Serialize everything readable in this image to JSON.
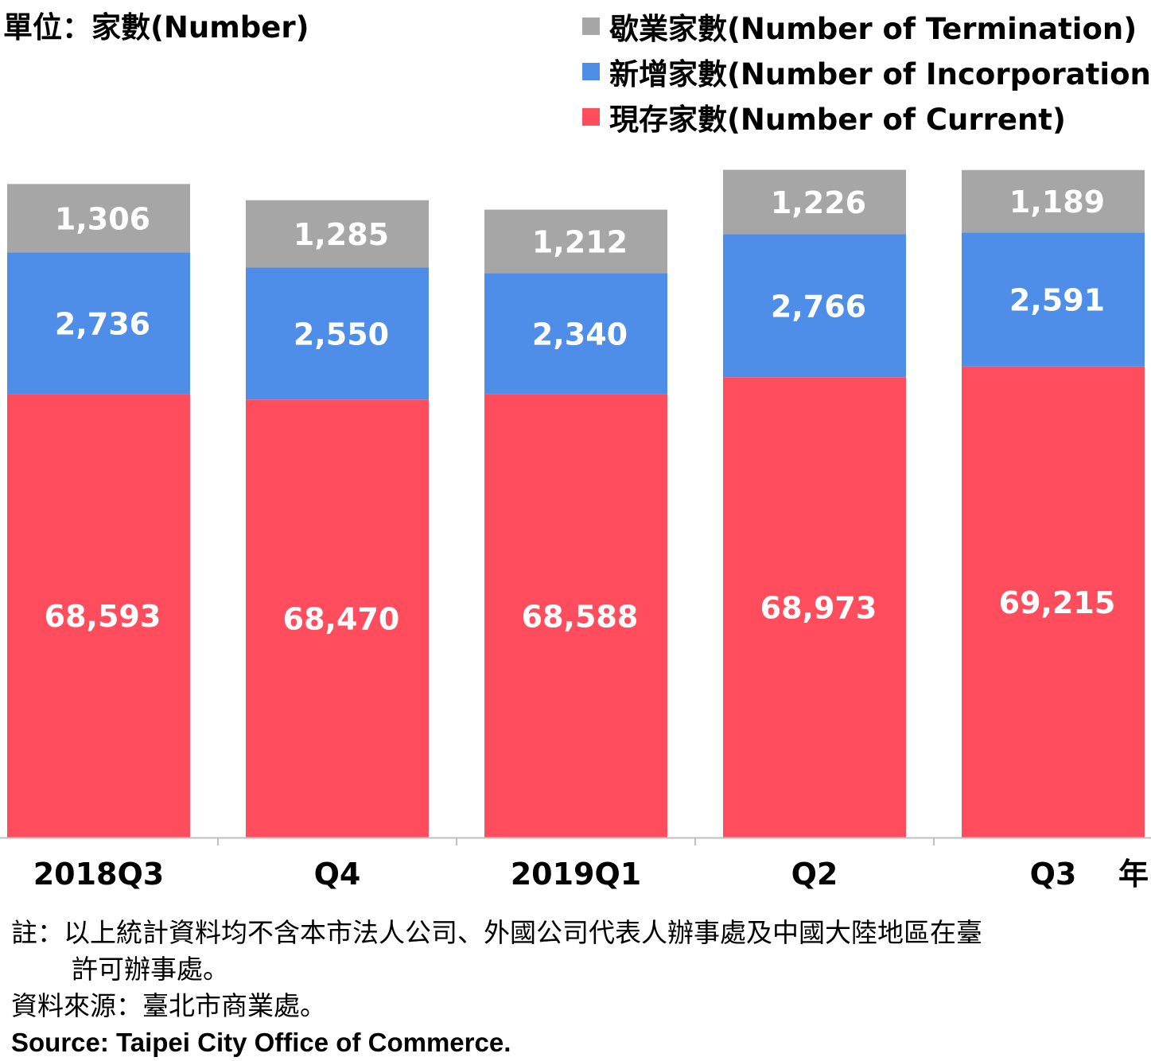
{
  "unit_label": "單位：家數(Number)",
  "year_axis_label": "年",
  "legend": [
    {
      "label": "歇業家數(Number of Termination)",
      "color": "#a6a6a6"
    },
    {
      "label": "新增家數(Number of Incorporation)",
      "color": "#4e8de8"
    },
    {
      "label": "現存家數(Number of Current)",
      "color": "#ff4d5e"
    }
  ],
  "chart_data": {
    "type": "bar",
    "stacked": true,
    "categories": [
      "2018Q3",
      "Q4",
      "2019Q1",
      "Q2",
      "Q3"
    ],
    "series": [
      {
        "name": "現存家數(Number of Current)",
        "color": "#ff4d5e",
        "values": [
          68593,
          68470,
          68588,
          68973,
          69215
        ],
        "labels": [
          "68,593",
          "68,470",
          "68,588",
          "68,973",
          "69,215"
        ]
      },
      {
        "name": "新增家數(Number of Incorporation)",
        "color": "#4e8de8",
        "values": [
          2736,
          2550,
          2340,
          2766,
          2591
        ],
        "labels": [
          "2,736",
          "2,550",
          "2,340",
          "2,766",
          "2,591"
        ]
      },
      {
        "name": "歇業家數(Number of Termination)",
        "color": "#a6a6a6",
        "values": [
          1306,
          1285,
          1212,
          1226,
          1189
        ],
        "labels": [
          "1,306",
          "1,285",
          "1,212",
          "1,226",
          "1,189"
        ]
      }
    ],
    "axis_break": true,
    "grid": false,
    "legend_position": "top-right"
  },
  "notes": {
    "line1": "註：以上統計資料均不含本市法人公司、外國公司代表人辦事處及中國大陸地區在臺",
    "line2": "許可辦事處。",
    "source_zh": "資料來源：臺北市商業處。",
    "source_en": "Source: Taipei City Office of Commerce."
  }
}
